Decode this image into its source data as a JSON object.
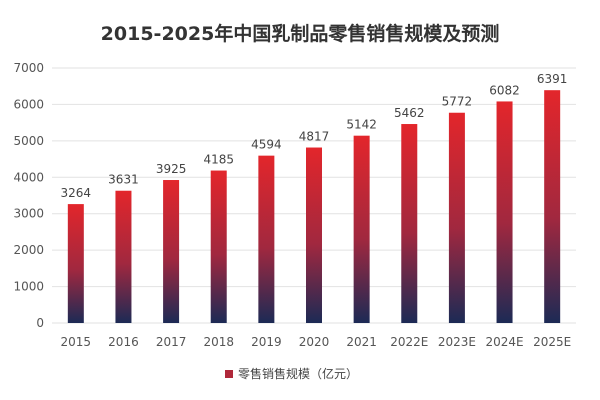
{
  "chart_data": {
    "type": "bar",
    "title": "2015-2025年中国乳制品零售销售规模及预测",
    "categories": [
      "2015",
      "2016",
      "2017",
      "2018",
      "2019",
      "2020",
      "2021",
      "2022E",
      "2023E",
      "2024E",
      "2025E"
    ],
    "series": [
      {
        "name": "零售销售规模（亿元）",
        "values": [
          3264,
          3631,
          3925,
          4185,
          4594,
          4817,
          5142,
          5462,
          5772,
          6082,
          6391
        ]
      }
    ],
    "xlabel": "",
    "ylabel": "",
    "ylim": [
      0,
      7000
    ],
    "yticks": [
      0,
      1000,
      2000,
      3000,
      4000,
      5000,
      6000,
      7000
    ],
    "grid": true,
    "legend": "bottom",
    "colors": {
      "bar_top": "#e3262b",
      "bar_bottom": "#1c2a55",
      "legend": "#b0283a"
    }
  }
}
